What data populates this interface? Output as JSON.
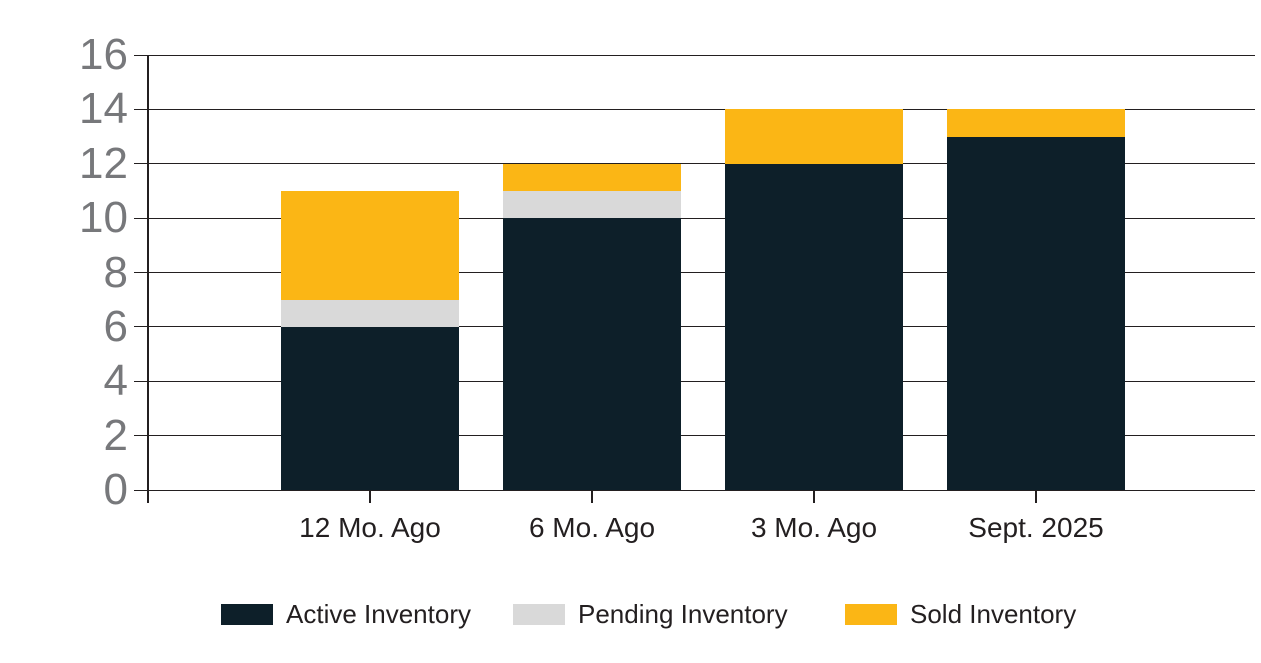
{
  "chart_data": {
    "type": "bar",
    "stacked": true,
    "categories": [
      "12 Mo. Ago",
      "6 Mo. Ago",
      "3 Mo. Ago",
      "Sept. 2025"
    ],
    "series": [
      {
        "name": "Active Inventory",
        "color": "#0d1f29",
        "values": [
          6,
          10,
          12,
          13
        ]
      },
      {
        "name": "Pending Inventory",
        "color": "#d9d9d9",
        "values": [
          1,
          1,
          0,
          0
        ]
      },
      {
        "name": "Sold Inventory",
        "color": "#fbb615",
        "values": [
          4,
          1,
          2,
          1
        ]
      }
    ],
    "stack_totals": [
      11,
      12,
      14,
      14
    ],
    "ylim": [
      0,
      16
    ],
    "ytick_step": 2,
    "ytick_labels": [
      "0",
      "2",
      "4",
      "6",
      "8",
      "10",
      "12",
      "14",
      "16"
    ],
    "grid": true,
    "legend_position": "bottom"
  },
  "colors": {
    "background": "#ffffff",
    "grid": "#231f20",
    "axis": "#231f20",
    "y_tick_label": "#77787b",
    "x_tick_label": "#231f20",
    "legend_label": "#231f20"
  }
}
